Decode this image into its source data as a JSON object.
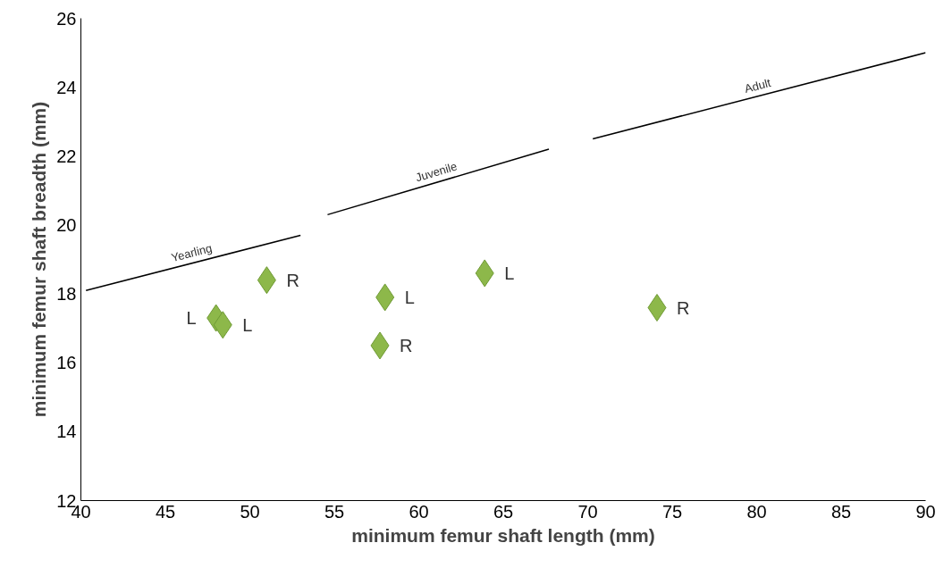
{
  "chart_data": {
    "type": "scatter",
    "xlabel": "minimum femur shaft length (mm)",
    "ylabel": "minimum femur shaft breadth (mm)",
    "xlim": [
      40,
      90
    ],
    "xticks": [
      40,
      45,
      50,
      55,
      60,
      65,
      70,
      75,
      80,
      85,
      90
    ],
    "ylim": [
      12,
      26
    ],
    "yticks": [
      12,
      14,
      16,
      18,
      20,
      22,
      24,
      26
    ],
    "grid": false,
    "series": [
      {
        "marker": "diamond",
        "color": "#8db84a",
        "x": [
          51.0,
          48.0,
          48.4,
          58.0,
          57.7,
          63.9,
          74.1
        ],
        "values": [
          18.4,
          17.3,
          17.1,
          17.9,
          16.5,
          18.6,
          17.6
        ],
        "value_labels": [
          "R",
          "L",
          "L",
          "L",
          "R",
          "L",
          "R"
        ]
      },
      {
        "type": "line",
        "marker": "none",
        "name": "Yearling",
        "color": "#000000",
        "x": [
          40.3,
          53.0
        ],
        "values": [
          18.1,
          19.7
        ]
      },
      {
        "type": "line",
        "marker": "none",
        "name": "Juvenile",
        "color": "#000000",
        "x": [
          54.6,
          67.7
        ],
        "values": [
          20.3,
          22.2
        ]
      },
      {
        "type": "line",
        "marker": "none",
        "name": "Adult",
        "color": "#000000",
        "x": [
          70.3,
          90.0
        ],
        "values": [
          22.5,
          25.0
        ]
      }
    ]
  }
}
